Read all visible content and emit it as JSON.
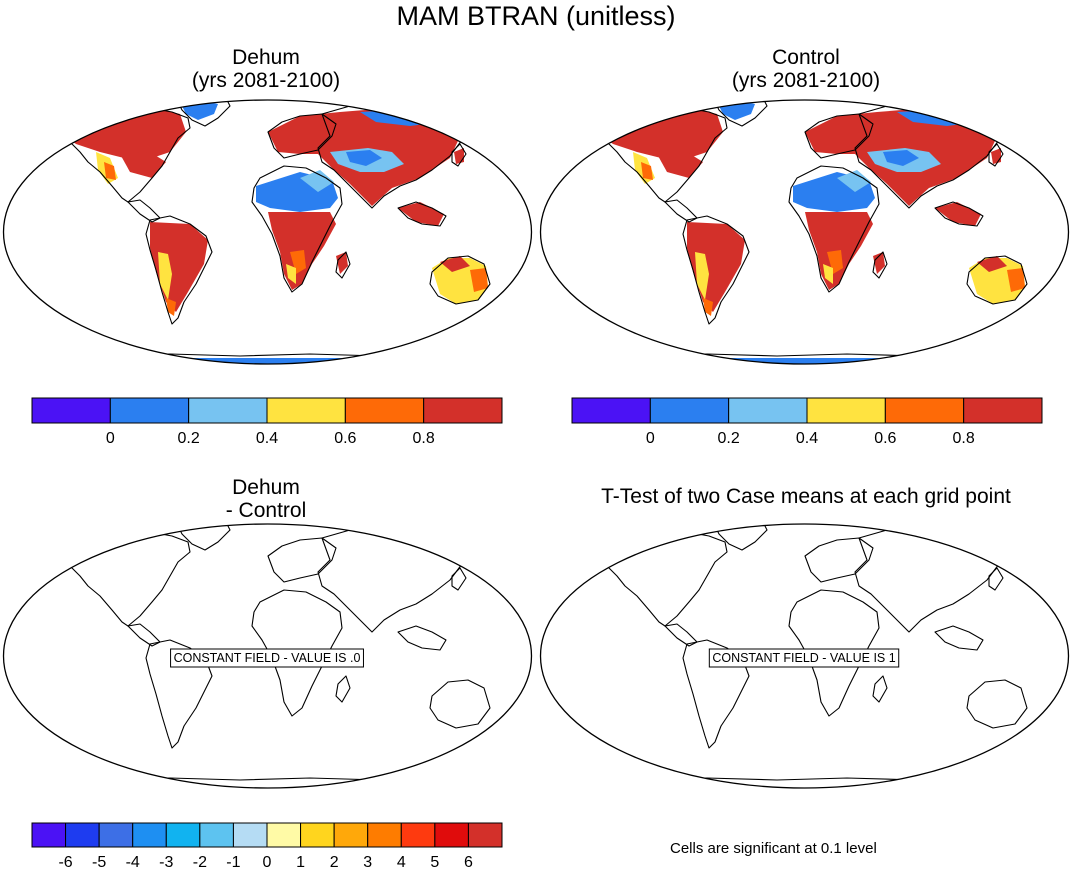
{
  "figure": {
    "title": "MAM BTRAN (unitless)"
  },
  "panels": [
    {
      "id": "dehum",
      "title_line1": "Dehum",
      "title_line2": "(yrs 2081-2100)",
      "filled": true
    },
    {
      "id": "control",
      "title_line1": "Control",
      "title_line2": "(yrs 2081-2100)",
      "filled": true
    },
    {
      "id": "diff",
      "title_line1": "Dehum",
      "title_line2": "- Control",
      "filled": false,
      "message": "CONSTANT FIELD - VALUE IS .0"
    },
    {
      "id": "ttest",
      "title_line1": "T-Test of two Case means at each grid point",
      "title_line2": "",
      "filled": false,
      "message": "CONSTANT FIELD - VALUE IS 1"
    }
  ],
  "colorbars": {
    "main": {
      "colors": [
        "#4b12f5",
        "#2b7ff0",
        "#77c3f1",
        "#ffe340",
        "#fe6a07",
        "#d3302a"
      ],
      "labels": [
        "0",
        "0.2",
        "0.4",
        "0.6",
        "0.8"
      ]
    },
    "diff": {
      "colors": [
        "#4b12f5",
        "#1e3cf0",
        "#3d6fe6",
        "#1e8ff2",
        "#11b3f0",
        "#5dc3f0",
        "#b5dcf4",
        "#fffaa6",
        "#ffd51e",
        "#ffa80a",
        "#fe7c00",
        "#fe3a0f",
        "#e00c0c",
        "#d3302a"
      ],
      "labels": [
        "-6",
        "-5",
        "-4",
        "-3",
        "-2",
        "-1",
        "0",
        "1",
        "2",
        "3",
        "4",
        "5",
        "6"
      ]
    }
  },
  "notes": {
    "significance": "Cells are significant at 0.1 level"
  },
  "colors": {
    "land_red": "#d3302a",
    "land_orange": "#fe6a07",
    "land_yellow": "#ffe340",
    "land_lightblue": "#77c3f1",
    "land_blue": "#2b7ff0"
  }
}
